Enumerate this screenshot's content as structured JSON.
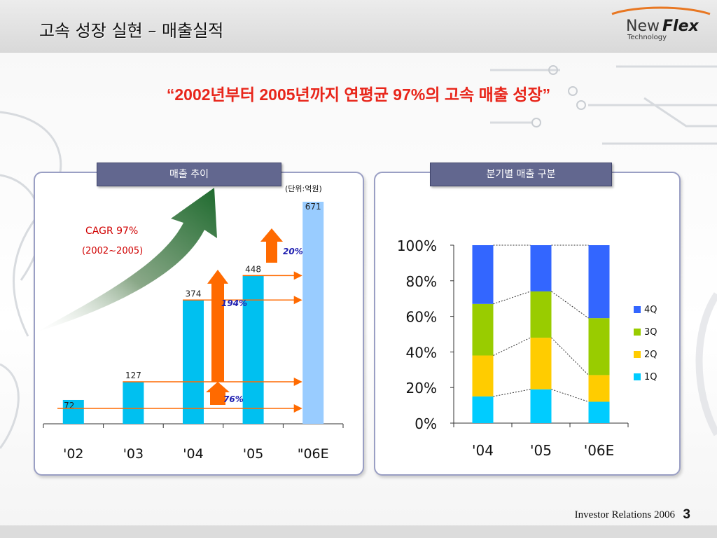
{
  "header": {
    "title": "고속 성장 실현 – 매출실적"
  },
  "logo": {
    "word1": "New",
    "word2": "Flex",
    "sub": "Technology",
    "colors": {
      "new": "#3a3a3a",
      "flex": "#1a1a1a",
      "swoosh": "#e87722"
    }
  },
  "headline": "“2002년부터 2005년까지 연평균 97%의 고속 매출 성장”",
  "chart_data": [
    {
      "type": "bar",
      "panel_title": "매출 추이",
      "unit_note": "(단위:억원)",
      "categories": [
        "'02",
        "'03",
        "'04",
        "'05",
        "\"06E"
      ],
      "values": [
        72,
        127,
        374,
        448,
        671
      ],
      "value_labels": [
        "72",
        "127",
        "374",
        "448",
        "671"
      ],
      "ylim": [
        0,
        700
      ],
      "colors": {
        "actual": "#00c0f0",
        "estimate": "#99ccff",
        "arrow": "#ff6a00",
        "growth_label": "#2020b0",
        "cagr": "#d00000"
      },
      "annotations": {
        "cagr_line1": "CAGR 97%",
        "cagr_line2": "(2002~2005)",
        "growth_04_05": "20%",
        "growth_03_04": "194%",
        "growth_02_03": "76%"
      }
    },
    {
      "type": "bar",
      "stacked": "percent",
      "panel_title": "분기별 매출 구분",
      "categories": [
        "'04",
        "'05",
        "'06E"
      ],
      "y_ticks": [
        "0%",
        "20%",
        "40%",
        "60%",
        "80%",
        "100%"
      ],
      "ylim": [
        0,
        100
      ],
      "series": [
        {
          "name": "1Q",
          "color": "#00ccff",
          "values": [
            15,
            19,
            12
          ]
        },
        {
          "name": "2Q",
          "color": "#ffcc00",
          "values": [
            23,
            29,
            15
          ]
        },
        {
          "name": "3Q",
          "color": "#99cc00",
          "values": [
            29,
            26,
            32
          ]
        },
        {
          "name": "4Q",
          "color": "#3366ff",
          "values": [
            33,
            26,
            41
          ]
        }
      ],
      "legend_order": [
        "4Q",
        "3Q",
        "2Q",
        "1Q"
      ]
    }
  ],
  "footer": {
    "text": "Investor Relations 2006",
    "page": "3"
  }
}
